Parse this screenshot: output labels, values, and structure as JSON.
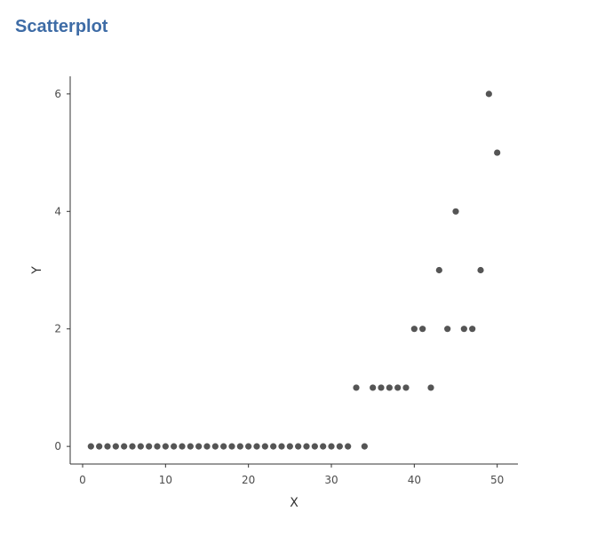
{
  "title": "Scatterplot",
  "colors": {
    "title": "#3e6ca6",
    "point": "#555555",
    "axis": "#333333"
  },
  "chart_data": {
    "type": "scatter",
    "title": "Scatterplot",
    "xlabel": "X",
    "ylabel": "Y",
    "xlim": [
      -1.5,
      52.5
    ],
    "ylim": [
      -0.3,
      6.3
    ],
    "xticks": [
      0,
      10,
      20,
      30,
      40,
      50
    ],
    "yticks": [
      0,
      2,
      4,
      6
    ],
    "grid": false,
    "x": [
      1,
      2,
      3,
      4,
      5,
      6,
      7,
      8,
      9,
      10,
      11,
      12,
      13,
      14,
      15,
      16,
      17,
      18,
      19,
      20,
      21,
      22,
      23,
      24,
      25,
      26,
      27,
      28,
      29,
      30,
      31,
      32,
      33,
      34,
      35,
      36,
      37,
      38,
      39,
      40,
      41,
      42,
      43,
      44,
      45,
      46,
      47,
      48,
      49,
      50
    ],
    "y": [
      0,
      0,
      0,
      0,
      0,
      0,
      0,
      0,
      0,
      0,
      0,
      0,
      0,
      0,
      0,
      0,
      0,
      0,
      0,
      0,
      0,
      0,
      0,
      0,
      0,
      0,
      0,
      0,
      0,
      0,
      0,
      0,
      1,
      0,
      1,
      1,
      1,
      1,
      1,
      2,
      2,
      1,
      3,
      2,
      4,
      2,
      2,
      3,
      6,
      5
    ]
  }
}
